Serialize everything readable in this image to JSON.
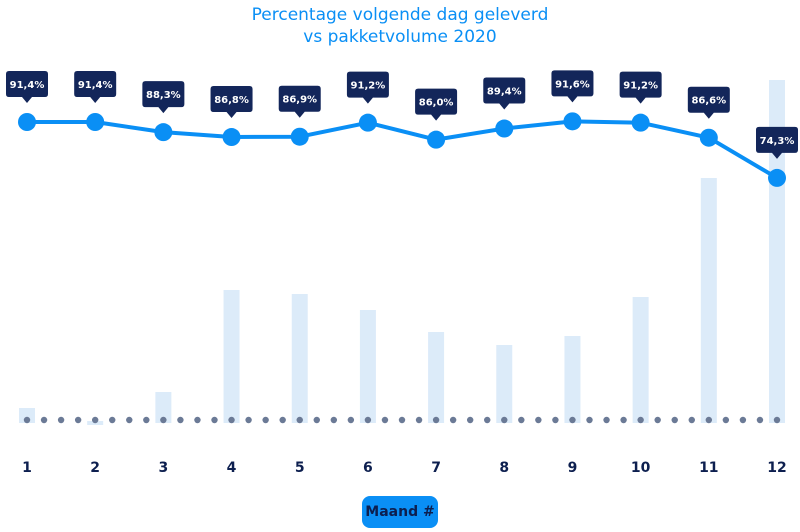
{
  "chart_data": {
    "type": "line+bar",
    "title_line1": "Percentage volgende dag geleverd",
    "title_line2": "vs pakketvolume 2020",
    "xlabel": "Maand #",
    "categories": [
      "1",
      "2",
      "3",
      "4",
      "5",
      "6",
      "7",
      "8",
      "9",
      "10",
      "11",
      "12"
    ],
    "line_series": {
      "values": [
        91.4,
        91.4,
        88.3,
        86.8,
        86.9,
        91.2,
        86.0,
        89.4,
        91.6,
        91.2,
        86.6,
        74.3
      ],
      "labels": [
        "91,4%",
        "91,4%",
        "88,3%",
        "86,8%",
        "86,9%",
        "91,2%",
        "86,0%",
        "89,4%",
        "91,6%",
        "91,2%",
        "86,6%",
        "74,3%"
      ]
    },
    "bar_series": {
      "values": [
        13,
        -2,
        29,
        131,
        127,
        111,
        89,
        76,
        85,
        124,
        243,
        341
      ]
    },
    "grid": false,
    "colors": {
      "line": "#0a8ff5",
      "bar": "#dcebf9",
      "label_bg": "#13265a",
      "baseline_dots": "#6b7a96",
      "tick": "#0d1f4f"
    }
  }
}
